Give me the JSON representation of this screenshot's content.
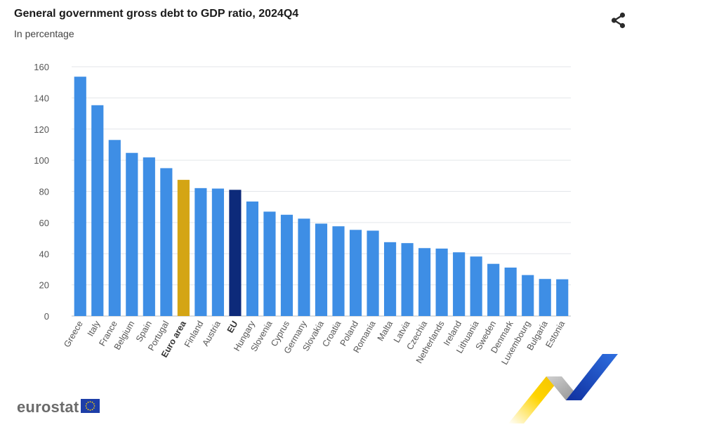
{
  "header": {
    "title": "General government gross debt to GDP ratio, 2024Q4",
    "subtitle": "In percentage"
  },
  "icons": {
    "share": "share-icon",
    "logo_flag": "eu-flag-icon"
  },
  "logo": {
    "text": "eurostat"
  },
  "colors": {
    "bar": "#3e8ee5",
    "euro_area": "#d4a514",
    "eu": "#0d2a7a",
    "grid": "#e3e6ea",
    "tick": "#555555"
  },
  "chart_data": {
    "type": "bar",
    "title": "General government gross debt to GDP ratio, 2024Q4",
    "subtitle": "In percentage",
    "xlabel": "",
    "ylabel": "",
    "ylim": [
      0,
      160
    ],
    "yticks": [
      0,
      20,
      40,
      60,
      80,
      100,
      120,
      140,
      160
    ],
    "grid": true,
    "categories": [
      "Greece",
      "Italy",
      "France",
      "Belgium",
      "Spain",
      "Portugal",
      "Euro area",
      "Finland",
      "Austria",
      "EU",
      "Hungary",
      "Slovenia",
      "Cyprus",
      "Germany",
      "Slovakia",
      "Croatia",
      "Poland",
      "Romania",
      "Malta",
      "Latvia",
      "Czechia",
      "Netherlands",
      "Ireland",
      "Lithuania",
      "Sweden",
      "Denmark",
      "Luxembourg",
      "Bulgaria",
      "Estonia"
    ],
    "values": [
      153.6,
      135.3,
      113.0,
      104.7,
      101.8,
      94.9,
      87.4,
      82.1,
      81.8,
      81.0,
      73.5,
      67.0,
      65.0,
      62.5,
      59.3,
      57.6,
      55.3,
      54.8,
      47.4,
      46.8,
      43.6,
      43.3,
      40.9,
      38.2,
      33.5,
      31.1,
      26.3,
      23.8,
      23.6
    ],
    "highlight": {
      "Euro area": "euro_area",
      "EU": "eu"
    }
  }
}
